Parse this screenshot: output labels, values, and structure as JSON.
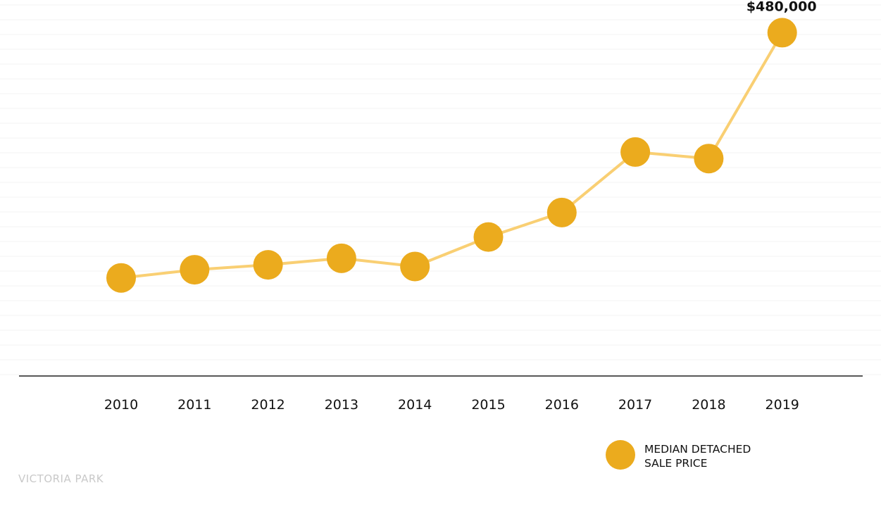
{
  "chart_data": {
    "type": "line",
    "title": "",
    "xlabel": "",
    "ylabel": "",
    "categories": [
      "2010",
      "2011",
      "2012",
      "2013",
      "2014",
      "2015",
      "2016",
      "2017",
      "2018",
      "2019"
    ],
    "series": [
      {
        "name": "MEDIAN DETACHED SALE PRICE",
        "values": [
          330000,
          335000,
          338000,
          342000,
          337000,
          355000,
          370000,
          407000,
          403000,
          480000
        ]
      }
    ],
    "ylim": [
      270000,
      500000
    ],
    "grid": true,
    "legend_position": "bottom-right",
    "annotations": [
      {
        "category": "2019",
        "text": "$480,000"
      }
    ],
    "colors": {
      "marker": "#ebab1e",
      "line": "#f9cf73",
      "grid": "#f3f3f3",
      "axis": "#222222",
      "watermark": "#c9c9c9"
    }
  },
  "legend": {
    "line1": "MEDIAN DETACHED",
    "line2": "SALE PRICE"
  },
  "watermark": "VICTORIA PARK"
}
